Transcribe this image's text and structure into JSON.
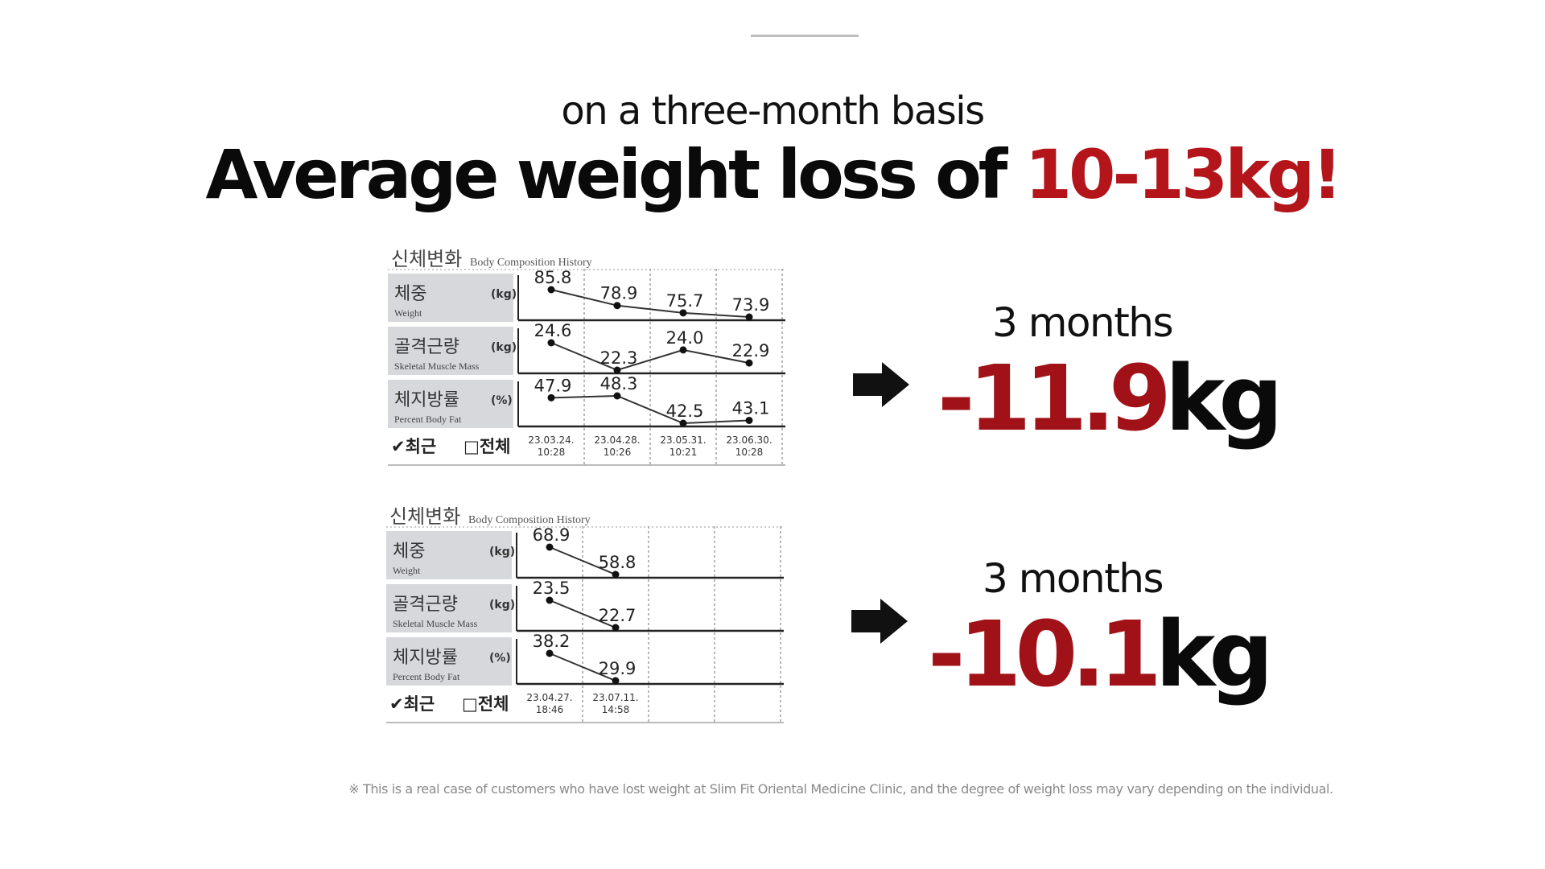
{
  "header": {
    "subtitle": "on a three-month basis",
    "headline_prefix": "Average weight loss of ",
    "headline_accent": "10-13kg!"
  },
  "colors": {
    "accent": "#b3151b",
    "loss_number": "#a11218",
    "label_bg": "#d6d8dc",
    "text": "#111111"
  },
  "chart_data": [
    {
      "type": "line",
      "title": "신체변화",
      "subtitle": "Body Composition History",
      "x": [
        "23.03.24.\n10:28",
        "23.04.28.\n10:26",
        "23.05.31.\n10:21",
        "23.06.30.\n10:28"
      ],
      "series": [
        {
          "name": "체중",
          "name_en": "Weight",
          "unit": "(kg)",
          "values": [
            85.8,
            78.9,
            75.7,
            73.9
          ]
        },
        {
          "name": "골격근량",
          "name_en": "Skeletal Muscle Mass",
          "unit": "(kg)",
          "values": [
            24.6,
            22.3,
            24.0,
            22.9
          ]
        },
        {
          "name": "체지방률",
          "name_en": "Percent Body Fat",
          "unit": "(%)",
          "values": [
            47.9,
            48.3,
            42.5,
            43.1
          ]
        }
      ],
      "footer_recent": "✔최근",
      "footer_all": "□전체",
      "empty_columns": 0
    },
    {
      "type": "line",
      "title": "신체변화",
      "subtitle": "Body Composition History",
      "x": [
        "23.04.27.\n18:46",
        "23.07.11.\n14:58"
      ],
      "series": [
        {
          "name": "체중",
          "name_en": "Weight",
          "unit": "(kg)",
          "values": [
            68.9,
            58.8
          ]
        },
        {
          "name": "골격근량",
          "name_en": "Skeletal Muscle Mass",
          "unit": "(kg)",
          "values": [
            23.5,
            22.7
          ]
        },
        {
          "name": "체지방률",
          "name_en": "Percent Body Fat",
          "unit": "(%)",
          "values": [
            38.2,
            29.9
          ]
        }
      ],
      "footer_recent": "✔최근",
      "footer_all": "□전체",
      "empty_columns": 2
    }
  ],
  "results": [
    {
      "arrow_icon": "right-arrow-icon",
      "period": "3 months",
      "loss_value": "-11.9",
      "loss_unit": "kg"
    },
    {
      "arrow_icon": "right-arrow-icon",
      "period": "3 months",
      "loss_value": "-10.1",
      "loss_unit": "kg"
    }
  ],
  "disclaimer": "※ This is a real case of customers who have lost weight at Slim Fit Oriental Medicine Clinic, and the degree of weight loss may vary depending on the individual."
}
